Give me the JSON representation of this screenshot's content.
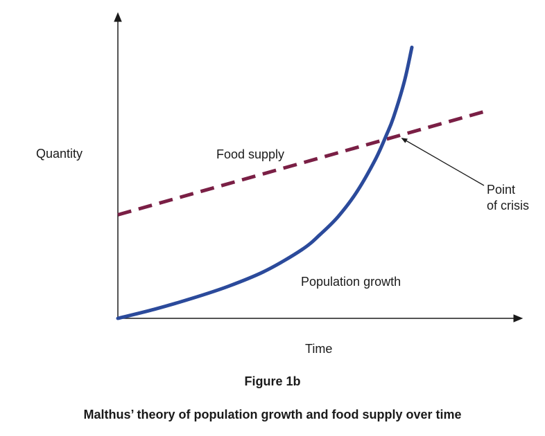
{
  "figure": {
    "label": "Figure 1b",
    "title": "Malthus’ theory of population growth and food supply over time"
  },
  "chart_data": {
    "type": "line",
    "xlabel": "Time",
    "ylabel": "Quantity",
    "xlim": [
      0,
      100
    ],
    "ylim": [
      0,
      100
    ],
    "series": [
      {
        "name": "Food supply",
        "style": "dashed",
        "color": "#7a1f45",
        "x": [
          0,
          100
        ],
        "y": [
          34,
          68
        ]
      },
      {
        "name": "Population growth",
        "style": "solid",
        "color": "#2b4a9b",
        "x": [
          0,
          10,
          20,
          30,
          40,
          50,
          55,
          60,
          65,
          70,
          73,
          75,
          78,
          80
        ],
        "y": [
          0,
          3,
          6.5,
          10.5,
          15.5,
          22.5,
          27.5,
          33.5,
          41.5,
          52,
          60,
          66,
          78,
          89
        ]
      }
    ],
    "annotations": [
      {
        "text_lines": [
          "Point",
          "of crisis"
        ],
        "points_to": "intersection of Food supply and Population growth"
      }
    ]
  }
}
